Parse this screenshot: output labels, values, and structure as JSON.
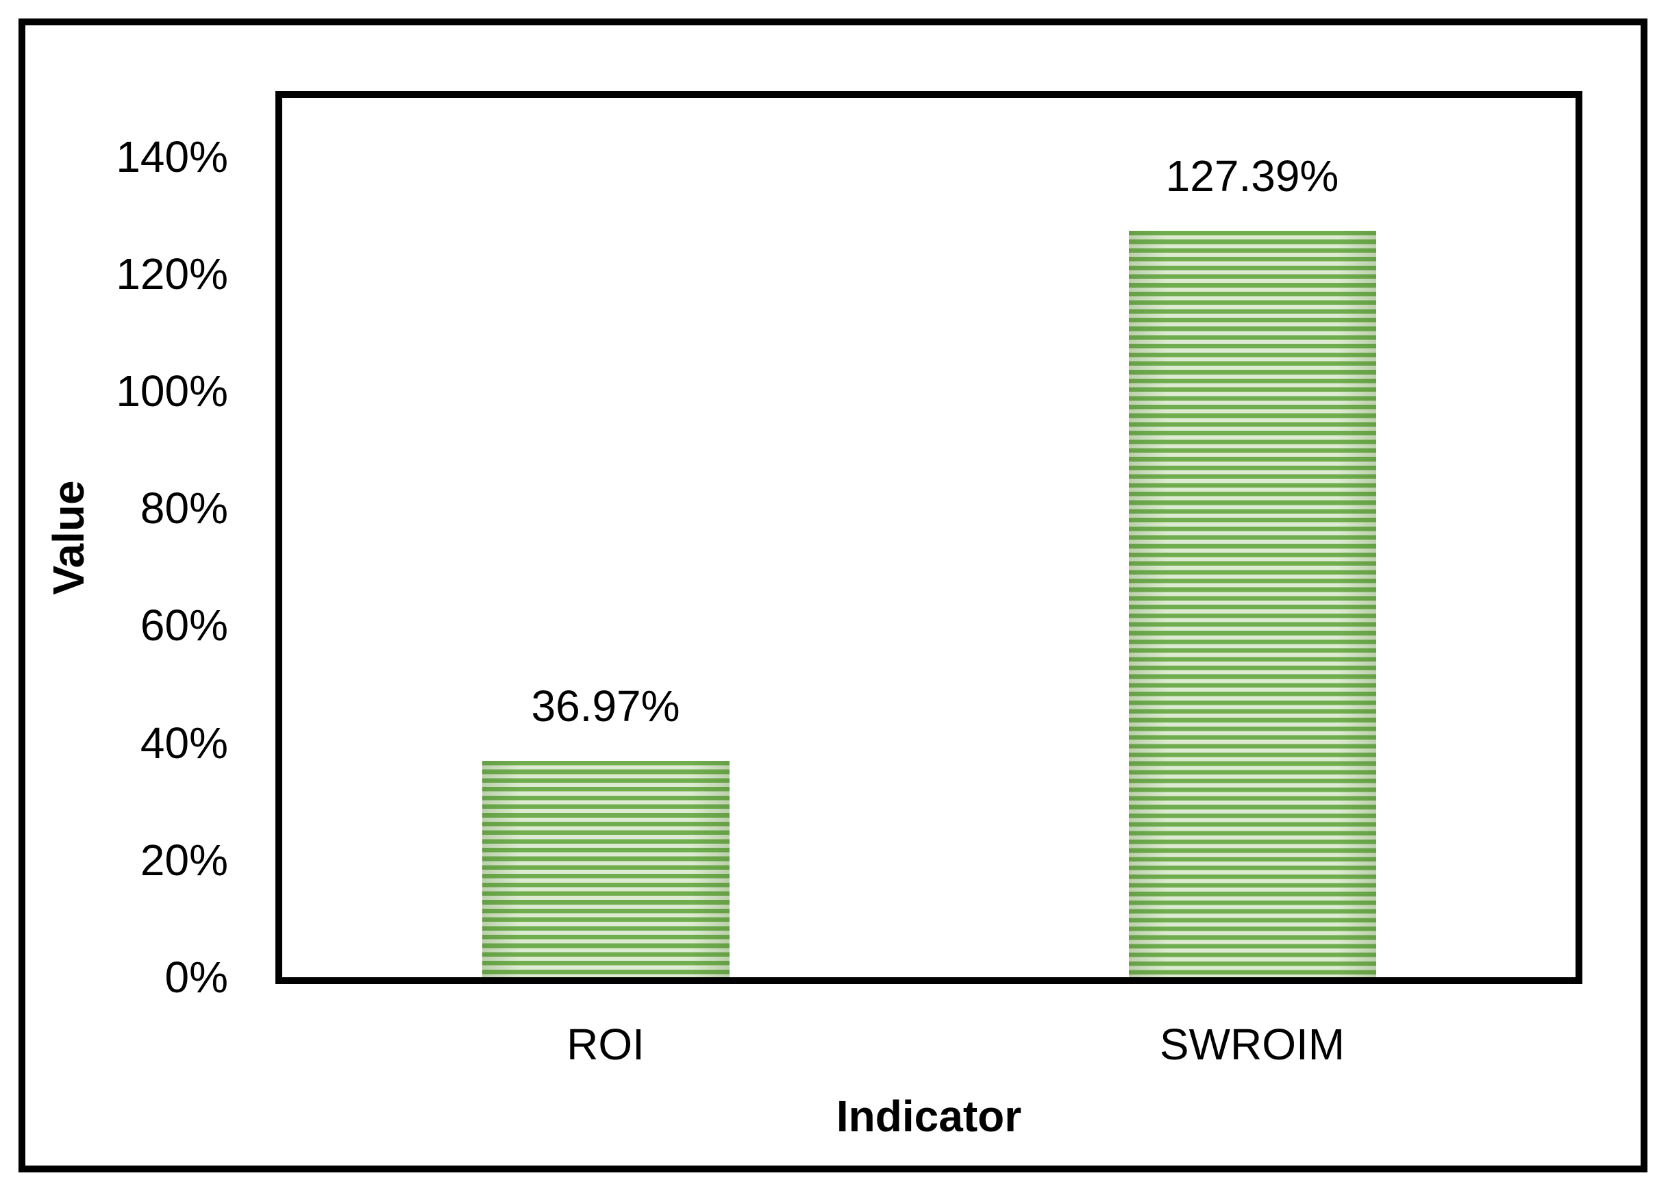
{
  "chart_data": {
    "type": "bar",
    "title": "",
    "categories": [
      "ROI",
      "SWROIM"
    ],
    "values": [
      0.3697,
      1.2739
    ],
    "value_labels": [
      "36.97%",
      "127.39%"
    ],
    "xlabel": "Indicator",
    "ylabel": "Value",
    "ylim": [
      0,
      1.5
    ],
    "yticks": [
      {
        "value": 0.0,
        "label": "0%"
      },
      {
        "value": 0.2,
        "label": "20%"
      },
      {
        "value": 0.4,
        "label": "40%"
      },
      {
        "value": 0.6,
        "label": "60%"
      },
      {
        "value": 0.8,
        "label": "80%"
      },
      {
        "value": 1.0,
        "label": "100%"
      },
      {
        "value": 1.2,
        "label": "120%"
      },
      {
        "value": 1.4,
        "label": "140%"
      }
    ],
    "grid": false,
    "legend": "none",
    "bar_fill_pattern": "horizontal-stripes",
    "colors": {
      "bar_stripe_dark": "#6fad4e",
      "bar_stripe_light": "#dcebd1",
      "border": "#000000",
      "text": "#000000",
      "background": "#ffffff"
    }
  }
}
